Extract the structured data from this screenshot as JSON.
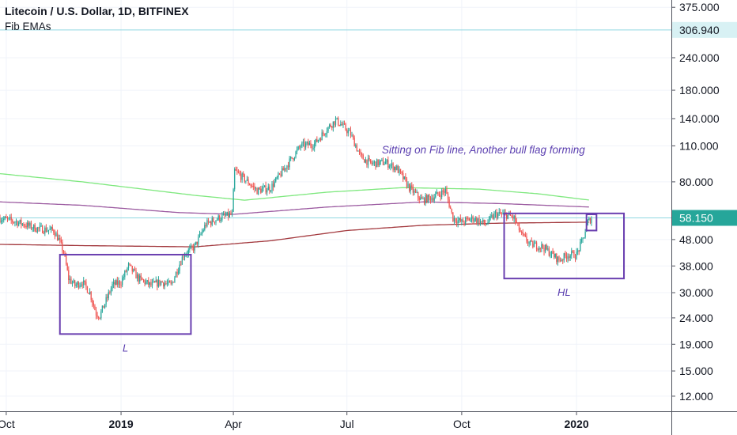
{
  "header": {
    "title": "Litecoin / U.S. Dollar, 1D, BITFINEX",
    "indicator": "Fib EMAs"
  },
  "colors": {
    "up": "#26a69a",
    "down": "#ef5350",
    "box": "#6a3fb0",
    "annotation": "#5b3fb0",
    "ema_green": "#7ee87e",
    "ema_purple": "#9b5aa0",
    "ema_maroon": "#a3393e",
    "hline": "#8fd7e0",
    "last_price_bg": "#26a69a",
    "hline_label_bg": "#d8f1f4"
  },
  "chart_data": {
    "type": "candlestick",
    "symbol": "Litecoin / U.S. Dollar",
    "timeframe": "1D",
    "exchange": "BITFINEX",
    "y_scale": "log",
    "ylim": [
      10.5,
      400
    ],
    "x_range": [
      "2018-09-26",
      "2020-03-17"
    ],
    "x_ticks": [
      {
        "label": "Oct",
        "date": "2018-10-01"
      },
      {
        "label": "2019",
        "date": "2019-01-01",
        "bold": true
      },
      {
        "label": "Apr",
        "date": "2019-04-01"
      },
      {
        "label": "Jul",
        "date": "2019-07-01"
      },
      {
        "label": "Oct",
        "date": "2019-10-01"
      },
      {
        "label": "2020",
        "date": "2020-01-01",
        "bold": true
      }
    ],
    "y_ticks": [
      "375.000",
      "240.000",
      "180.000",
      "140.000",
      "110.000",
      "80.000",
      "48.000",
      "38.000",
      "30.000",
      "24.000",
      "19.000",
      "15.000",
      "12.000"
    ],
    "horizontal_lines": [
      {
        "value": 306.94,
        "label": "306.940"
      },
      {
        "value": 58.15,
        "label": "58.150",
        "last_price": true
      }
    ],
    "close_path": [
      [
        "2018-09-26",
        58
      ],
      [
        "2018-10-10",
        56
      ],
      [
        "2018-10-25",
        53
      ],
      [
        "2018-11-08",
        52
      ],
      [
        "2018-11-12",
        48
      ],
      [
        "2018-11-16",
        43
      ],
      [
        "2018-11-20",
        34
      ],
      [
        "2018-11-25",
        32
      ],
      [
        "2018-12-01",
        33
      ],
      [
        "2018-12-07",
        30
      ],
      [
        "2018-12-12",
        25
      ],
      [
        "2018-12-15",
        24.5
      ],
      [
        "2018-12-20",
        28
      ],
      [
        "2018-12-25",
        32
      ],
      [
        "2019-01-01",
        33
      ],
      [
        "2019-01-07",
        38
      ],
      [
        "2019-01-15",
        34
      ],
      [
        "2019-01-25",
        32
      ],
      [
        "2019-02-02",
        33
      ],
      [
        "2019-02-10",
        32
      ],
      [
        "2019-02-20",
        42
      ],
      [
        "2019-03-01",
        45
      ],
      [
        "2019-03-10",
        55
      ],
      [
        "2019-03-20",
        58
      ],
      [
        "2019-03-31",
        60
      ],
      [
        "2019-04-02",
        88
      ],
      [
        "2019-04-10",
        82
      ],
      [
        "2019-04-20",
        74
      ],
      [
        "2019-05-01",
        76
      ],
      [
        "2019-05-12",
        90
      ],
      [
        "2019-05-25",
        110
      ],
      [
        "2019-06-05",
        112
      ],
      [
        "2019-06-15",
        128
      ],
      [
        "2019-06-22",
        138
      ],
      [
        "2019-06-27",
        132
      ],
      [
        "2019-07-04",
        122
      ],
      [
        "2019-07-12",
        100
      ],
      [
        "2019-07-20",
        94
      ],
      [
        "2019-08-01",
        95
      ],
      [
        "2019-08-10",
        90
      ],
      [
        "2019-08-20",
        76
      ],
      [
        "2019-08-30",
        68
      ],
      [
        "2019-09-08",
        70
      ],
      [
        "2019-09-18",
        74
      ],
      [
        "2019-09-24",
        58
      ],
      [
        "2019-10-01",
        56
      ],
      [
        "2019-10-10",
        58
      ],
      [
        "2019-10-20",
        55
      ],
      [
        "2019-10-28",
        60
      ],
      [
        "2019-11-05",
        60
      ],
      [
        "2019-11-12",
        58
      ],
      [
        "2019-11-18",
        50
      ],
      [
        "2019-11-25",
        46
      ],
      [
        "2019-12-05",
        45
      ],
      [
        "2019-12-18",
        40
      ],
      [
        "2019-12-25",
        42
      ],
      [
        "2020-01-01",
        42
      ],
      [
        "2020-01-06",
        48
      ],
      [
        "2020-01-10",
        56
      ],
      [
        "2020-01-13",
        58.15
      ]
    ],
    "series": [
      {
        "name": "",
        "kind": "ema",
        "color_key": "ema_green",
        "points": [
          [
            "2018-09-26",
            86
          ],
          [
            "2018-12-01",
            80
          ],
          [
            "2019-03-01",
            71
          ],
          [
            "2019-04-10",
            68
          ],
          [
            "2019-06-15",
            73
          ],
          [
            "2019-08-15",
            76
          ],
          [
            "2019-10-15",
            75
          ],
          [
            "2019-12-01",
            72
          ],
          [
            "2020-01-12",
            68
          ]
        ]
      },
      {
        "name": "",
        "kind": "ema",
        "color_key": "ema_purple",
        "points": [
          [
            "2018-09-26",
            67
          ],
          [
            "2018-12-01",
            65
          ],
          [
            "2019-02-15",
            61
          ],
          [
            "2019-04-01",
            60
          ],
          [
            "2019-06-15",
            64
          ],
          [
            "2019-09-01",
            67
          ],
          [
            "2019-11-01",
            66
          ],
          [
            "2020-01-12",
            64
          ]
        ]
      },
      {
        "name": "",
        "kind": "ema",
        "color_key": "ema_maroon",
        "points": [
          [
            "2018-09-26",
            46
          ],
          [
            "2018-12-01",
            45.5
          ],
          [
            "2019-03-01",
            45
          ],
          [
            "2019-05-01",
            47.5
          ],
          [
            "2019-07-01",
            52
          ],
          [
            "2019-09-01",
            54.5
          ],
          [
            "2019-11-01",
            55.5
          ],
          [
            "2020-01-12",
            56
          ]
        ]
      }
    ],
    "rectangles": [
      {
        "x0": "2018-11-13",
        "x1": "2019-02-26",
        "y0": 20.8,
        "y1": 42,
        "label": "L"
      },
      {
        "x0": "2019-11-04",
        "x1": "2020-02-08",
        "y0": 34,
        "y1": 60.5,
        "label": "HL"
      },
      {
        "x0": "2020-01-09",
        "x1": "2020-01-17",
        "y0": 52,
        "y1": 60
      }
    ],
    "annotations": [
      {
        "text": "Sitting on Fib line, Another bull flag forming",
        "date": "2019-07-29",
        "value": 103
      }
    ]
  }
}
